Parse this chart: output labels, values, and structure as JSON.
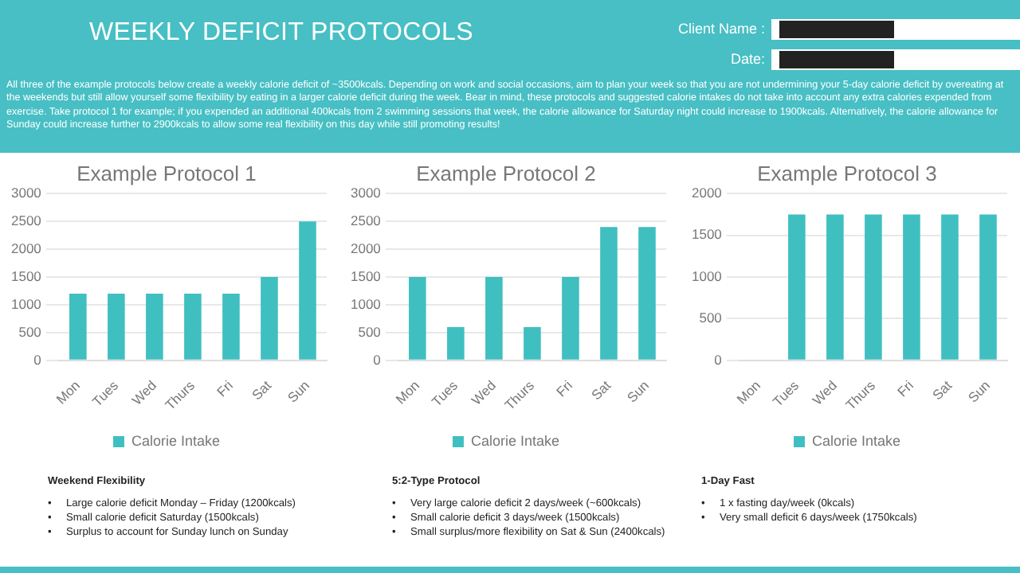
{
  "chart_data": [
    {
      "type": "other",
      "title": "WEEKLY DEFICIT PROTOCOLS",
      "annotations": [
        "Client Name :",
        "Date:",
        "All three of the example protocols below create a weekly calorie deficit of ~3500kcals. Depending on work and social occasions, aim to plan your week so that you are not undermining your 5-day calorie deficit by overeating at the weekends but still allow yourself some flexibility by eating in a larger calorie deficit during the week. Bear in mind, these protocols and suggested calorie intakes do not take into account any extra calories expended from exercise. Take protocol 1 for example; if you expended an additional 400kcals from 2 swimming sessions that week, the calorie allowance for Saturday night could increase to 1900kcals. Alternatively, the calorie allowance for Sunday could increase further to 2900kcals to allow some real flexibility on this day while still promoting results!"
      ]
    },
    {
      "type": "bar",
      "title": "Example Protocol 1",
      "categories": [
        "Mon",
        "Tues",
        "Wed",
        "Thurs",
        "Fri",
        "Sat",
        "Sun"
      ],
      "series": [
        {
          "name": "Calorie Intake",
          "color": "#40bfc1",
          "values": [
            1200,
            1200,
            1200,
            1200,
            1200,
            1500,
            2500
          ]
        }
      ],
      "ylim": [
        0,
        3000
      ],
      "yticks": [
        0,
        500,
        1000,
        1500,
        2000,
        2500,
        3000
      ],
      "grid": "y",
      "legend": "bottom",
      "annotations": [
        "Weekend Flexibility",
        "•     Large calorie deficit Monday – Friday (1200kcals)",
        "•     Small calorie deficit Saturday (1500kcals)",
        "•     Surplus to account for Sunday lunch on Sunday"
      ]
    },
    {
      "type": "bar",
      "title": "Example Protocol 2",
      "categories": [
        "Mon",
        "Tues",
        "Wed",
        "Thurs",
        "Fri",
        "Sat",
        "Sun"
      ],
      "series": [
        {
          "name": "Calorie Intake",
          "color": "#40bfc1",
          "values": [
            1500,
            600,
            1500,
            600,
            1500,
            2400,
            2400
          ]
        }
      ],
      "ylim": [
        0,
        3000
      ],
      "yticks": [
        0,
        500,
        1000,
        1500,
        2000,
        2500,
        3000
      ],
      "grid": "y",
      "legend": "bottom",
      "annotations": [
        "5:2-Type Protocol",
        "•     Very large calorie deficit 2 days/week (~600kcals)",
        "•     Small calorie deficit 3 days/week (1500kcals)",
        "•     Small surplus/more flexibility on Sat & Sun (2400kcals)"
      ]
    },
    {
      "type": "bar",
      "title": "Example Protocol 3",
      "categories": [
        "Mon",
        "Tues",
        "Wed",
        "Thurs",
        "Fri",
        "Sat",
        "Sun"
      ],
      "series": [
        {
          "name": "Calorie Intake",
          "color": "#40bfc1",
          "values": [
            0,
            1750,
            1750,
            1750,
            1750,
            1750,
            1750
          ]
        }
      ],
      "ylim": [
        0,
        2000
      ],
      "yticks": [
        0,
        500,
        1000,
        1500,
        2000
      ],
      "grid": "y",
      "legend": "bottom",
      "annotations": [
        "1-Day Fast",
        "•     1 x fasting day/week (0kcals)",
        "•     Very small deficit 6 days/week (1750kcals)"
      ]
    }
  ]
}
